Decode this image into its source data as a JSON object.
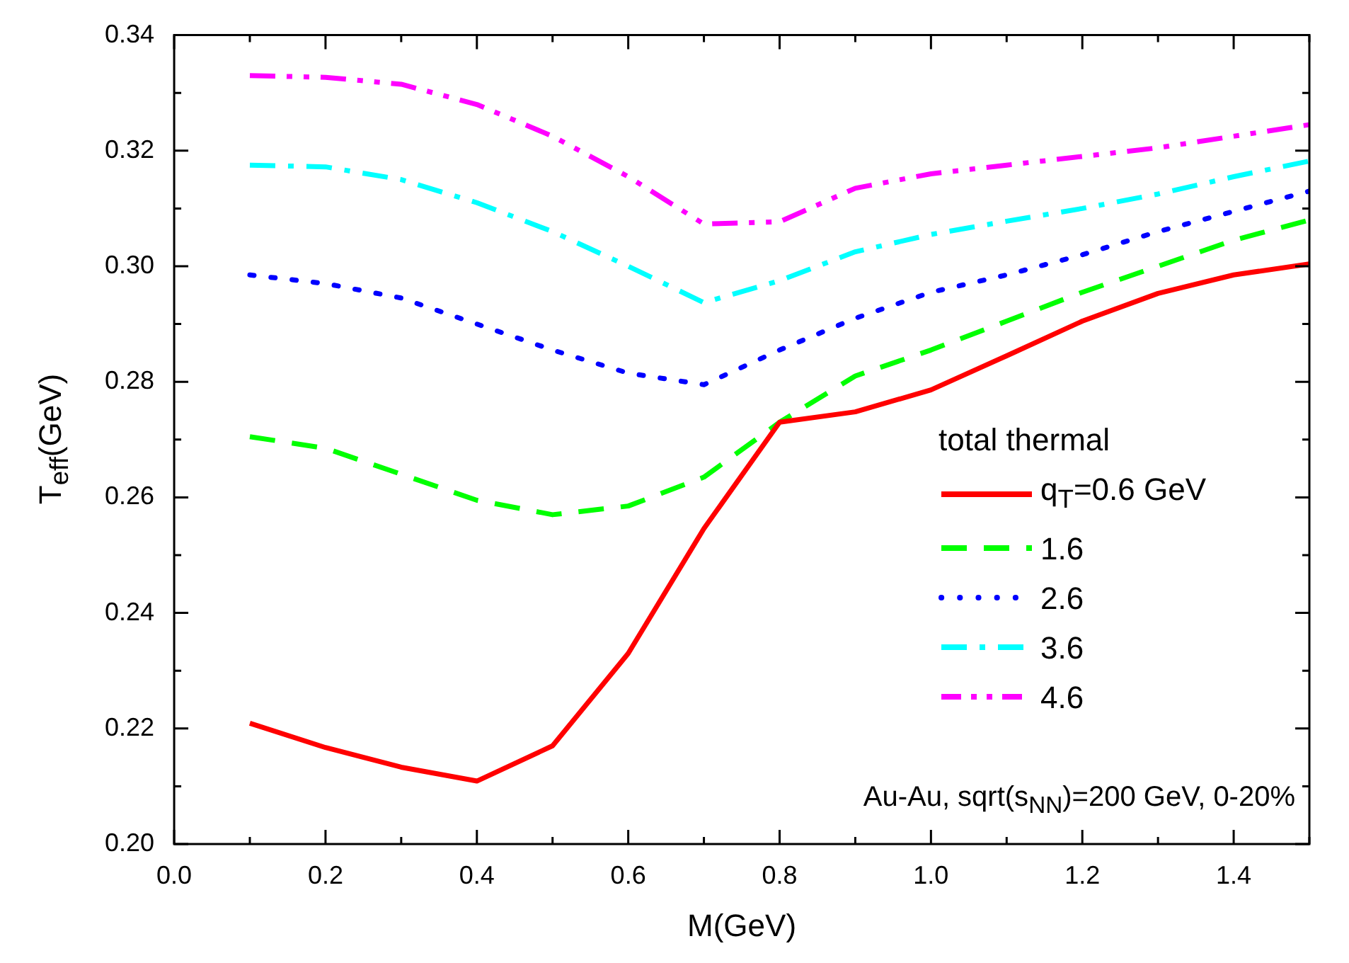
{
  "chart_data": {
    "type": "line",
    "xlabel": "M(GeV)",
    "ylabel": "T$_{eff}$(GeV)",
    "legend_title": "total thermal",
    "legend": "right",
    "grid": false,
    "marker": "none",
    "x": [
      0.1,
      0.2,
      0.3,
      0.4,
      0.5,
      0.6,
      0.7,
      0.8,
      0.9,
      1.0,
      1.1,
      1.2,
      1.3,
      1.4,
      1.5
    ],
    "xlim": [
      0,
      1.5
    ],
    "xticks": [
      {
        "value": 0,
        "label": "0.0"
      },
      {
        "value": 0.1,
        "label": null
      },
      {
        "value": 0.2,
        "label": "0.2"
      },
      {
        "value": 0.3,
        "label": null
      },
      {
        "value": 0.4,
        "label": "0.4"
      },
      {
        "value": 0.5,
        "label": null
      },
      {
        "value": 0.6,
        "label": "0.6"
      },
      {
        "value": 0.7,
        "label": null
      },
      {
        "value": 0.8,
        "label": "0.8"
      },
      {
        "value": 0.9,
        "label": null
      },
      {
        "value": 1.0,
        "label": "1.0"
      },
      {
        "value": 1.1,
        "label": null
      },
      {
        "value": 1.2,
        "label": "1.2"
      },
      {
        "value": 1.3,
        "label": null
      },
      {
        "value": 1.4,
        "label": "1.4"
      },
      {
        "value": 1.5,
        "label": null
      }
    ],
    "ylim": [
      0.2,
      0.34
    ],
    "yticks": [
      {
        "value": 0.2,
        "label": "0.20"
      },
      {
        "value": 0.21,
        "label": null
      },
      {
        "value": 0.22,
        "label": "0.22"
      },
      {
        "value": 0.23,
        "label": null
      },
      {
        "value": 0.24,
        "label": "0.24"
      },
      {
        "value": 0.25,
        "label": null
      },
      {
        "value": 0.26,
        "label": "0.26"
      },
      {
        "value": 0.27,
        "label": null
      },
      {
        "value": 0.28,
        "label": "0.28"
      },
      {
        "value": 0.29,
        "label": null
      },
      {
        "value": 0.3,
        "label": "0.30"
      },
      {
        "value": 0.31,
        "label": null
      },
      {
        "value": 0.32,
        "label": "0.32"
      },
      {
        "value": 0.33,
        "label": null
      },
      {
        "value": 0.34,
        "label": "0.34"
      }
    ],
    "annotations": [
      "Au-Au, sqrt(s$_{NN}$)=200 GeV, 0-20%"
    ],
    "series": [
      {
        "name": "q$_{T}$=0.6 GeV",
        "color": "#ff0000",
        "line_style": "solid",
        "values": [
          0.2209,
          0.2167,
          0.2133,
          0.2109,
          0.217,
          0.233,
          0.2546,
          0.273,
          0.2748,
          0.2786,
          0.2845,
          0.2905,
          0.2953,
          0.2985,
          0.3004
        ]
      },
      {
        "name": "1.6",
        "color": "#00ff00",
        "line_style": "dashed",
        "values": [
          0.2705,
          0.2685,
          0.264,
          0.2595,
          0.257,
          0.2585,
          0.2635,
          0.273,
          0.281,
          0.2855,
          0.2905,
          0.2955,
          0.3,
          0.3045,
          0.308
        ]
      },
      {
        "name": "2.6",
        "color": "#0000ff",
        "line_style": "dotted",
        "values": [
          0.2985,
          0.297,
          0.2945,
          0.29,
          0.2855,
          0.2815,
          0.2795,
          0.2855,
          0.291,
          0.2955,
          0.2985,
          0.302,
          0.306,
          0.3095,
          0.313
        ]
      },
      {
        "name": "3.6",
        "color": "#00ffff",
        "line_style": "dashdot",
        "values": [
          0.3175,
          0.3172,
          0.315,
          0.311,
          0.306,
          0.3,
          0.2937,
          0.2975,
          0.3025,
          0.3055,
          0.3078,
          0.31,
          0.3125,
          0.3155,
          0.3182
        ]
      },
      {
        "name": "4.6",
        "color": "#ff00ff",
        "line_style": "dashdotdot",
        "values": [
          0.333,
          0.3327,
          0.3315,
          0.328,
          0.3225,
          0.3155,
          0.3073,
          0.3077,
          0.3135,
          0.316,
          0.3175,
          0.319,
          0.3205,
          0.3225,
          0.3245
        ]
      }
    ]
  }
}
